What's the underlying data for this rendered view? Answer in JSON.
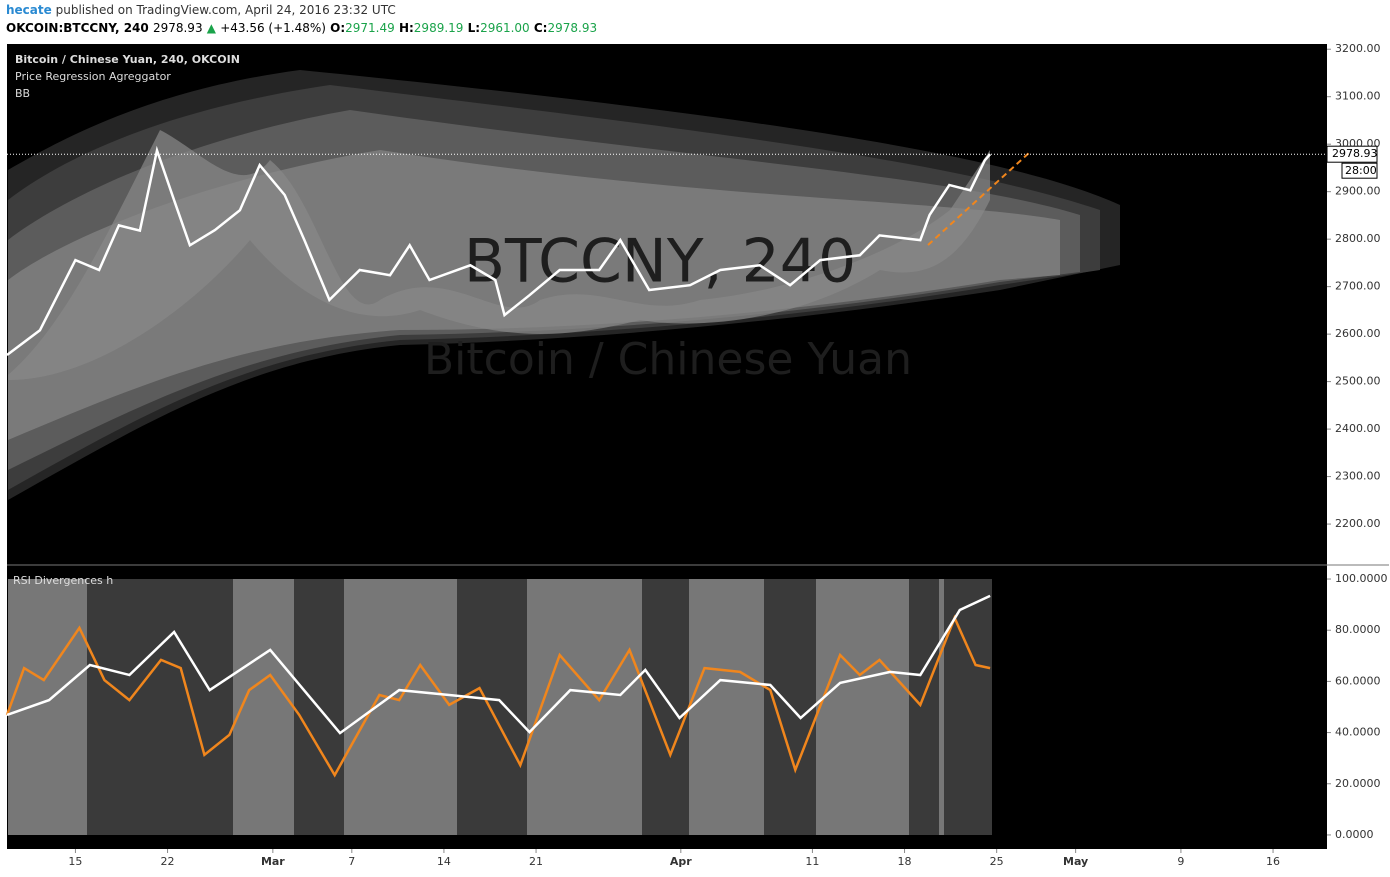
{
  "header": {
    "author": "hecate",
    "published": "published on TradingView.com, April 24, 2016 23:32 UTC",
    "symbol": "OKCOIN:BTCCNY, 240",
    "price": "2978.93",
    "arrow": "▲",
    "change": "+43.56 (+1.48%)",
    "o_label": "O:",
    "open": "2971.49",
    "h_label": "H:",
    "high": "2989.19",
    "l_label": "L:",
    "low": "2961.00",
    "c_label": "C:",
    "close": "2978.93"
  },
  "chart_data": [
    {
      "type": "line",
      "indicators": [
        "Price Regression Agreggator",
        "BB"
      ],
      "watermark": [
        "BTCCNY, 240",
        "Bitcoin / Chinese Yuan"
      ],
      "xlim": [
        -5.2,
        95.1
      ],
      "ylim": [
        2118,
        3211
      ],
      "xticks": [
        {
          "value": 0,
          "label": "15"
        },
        {
          "value": 7,
          "label": "22"
        },
        {
          "value": 15,
          "label": "Mar"
        },
        {
          "value": 21,
          "label": "7"
        },
        {
          "value": 28,
          "label": "14"
        },
        {
          "value": 35,
          "label": "21"
        },
        {
          "value": 46,
          "label": "Apr"
        },
        {
          "value": 56,
          "label": "11"
        },
        {
          "value": 63,
          "label": "18"
        },
        {
          "value": 70,
          "label": "25"
        },
        {
          "value": 76,
          "label": "May"
        },
        {
          "value": 84,
          "label": "9"
        },
        {
          "value": 91,
          "label": "16"
        }
      ],
      "yticks": [
        {
          "value": 2200,
          "label": "2200.00"
        },
        {
          "value": 2300,
          "label": "2300.00"
        },
        {
          "value": 2400,
          "label": "2400.00"
        },
        {
          "value": 2500,
          "label": "2500.00"
        },
        {
          "value": 2600,
          "label": "2600.00"
        },
        {
          "value": 2700,
          "label": "2700.00"
        },
        {
          "value": 2800,
          "label": "2800.00"
        },
        {
          "value": 2900,
          "label": "2900.00"
        },
        {
          "value": 3000,
          "label": "3000.00"
        },
        {
          "value": 3100,
          "label": "3100.00"
        },
        {
          "value": 3200,
          "label": "3200.00"
        }
      ],
      "last_price": {
        "value": 2978.93,
        "label": "2978.93"
      },
      "countdown": "28:00",
      "series": [
        {
          "name": "Bitcoin / Chinese Yuan, 240, OKCOIN",
          "color": "#ffffff",
          "x": [
            -5.2,
            -2.7,
            0,
            1.8,
            3.3,
            4.9,
            6.2,
            7.5,
            8.7,
            10.6,
            12.5,
            14.0,
            15.9,
            17.4,
            19.3,
            21.6,
            23.9,
            25.4,
            26.9,
            30.0,
            31.9,
            32.6,
            34.5,
            36.8,
            39.8,
            41.4,
            43.6,
            46.7,
            49.0,
            52.0,
            54.3,
            56.6,
            59.6,
            61.1,
            64.2,
            64.9,
            66.4,
            68.0,
            69.1,
            69.5
          ],
          "values": [
            2556,
            2608,
            2756,
            2735,
            2829,
            2818,
            2987,
            2882,
            2787,
            2819,
            2861,
            2956,
            2893,
            2798,
            2672,
            2735,
            2724,
            2787,
            2714,
            2745,
            2714,
            2640,
            2682,
            2735,
            2735,
            2798,
            2693,
            2703,
            2735,
            2745,
            2703,
            2756,
            2766,
            2808,
            2798,
            2851,
            2914,
            2903,
            2966,
            2979
          ]
        }
      ]
    },
    {
      "type": "line",
      "title": "RSI Divergences h",
      "ylim": [
        -5.1,
        104.7
      ],
      "yticks": [
        {
          "value": 0,
          "label": "0.0000"
        },
        {
          "value": 20,
          "label": "20.0000"
        },
        {
          "value": 40,
          "label": "40.0000"
        },
        {
          "value": 60,
          "label": "60.0000"
        },
        {
          "value": 80,
          "label": "80.0000"
        },
        {
          "value": 100,
          "label": "100.0000"
        }
      ],
      "series": [
        {
          "color": "#f0861d",
          "x": [
            -5.2,
            -3.9,
            -2.4,
            0.3,
            2.2,
            4.1,
            6.5,
            8.0,
            9.8,
            11.7,
            13.2,
            14.8,
            17.0,
            19.7,
            23.1,
            24.6,
            26.2,
            28.4,
            30.7,
            33.8,
            36.8,
            39.8,
            42.1,
            45.2,
            47.8,
            50.5,
            52.8,
            54.7,
            58.1,
            59.6,
            61.1,
            64.2,
            66.8,
            68.4,
            69.5
          ],
          "values": [
            46.9,
            65.2,
            60.5,
            80.9,
            60.5,
            52.7,
            68.4,
            65.2,
            31.3,
            39.1,
            56.6,
            62.5,
            46.9,
            23.4,
            54.7,
            52.7,
            66.4,
            50.8,
            57.4,
            27.3,
            70.3,
            52.7,
            72.3,
            31.3,
            65.2,
            63.7,
            56.6,
            25.4,
            70.3,
            62.5,
            68.4,
            50.8,
            84.8,
            66.4,
            65.2
          ]
        },
        {
          "color": "#ffffff",
          "x": [
            -5.2,
            -2.0,
            1.1,
            4.1,
            7.5,
            10.2,
            14.8,
            20.1,
            24.6,
            28.4,
            32.2,
            34.5,
            37.6,
            41.4,
            43.3,
            45.9,
            49.0,
            52.8,
            55.1,
            58.1,
            61.9,
            64.2,
            67.2,
            69.5
          ],
          "values": [
            46.9,
            52.7,
            66.4,
            62.5,
            79.3,
            56.6,
            72.3,
            39.8,
            56.6,
            54.7,
            52.7,
            40.2,
            56.6,
            54.7,
            64.5,
            45.7,
            60.5,
            58.6,
            45.7,
            59.4,
            63.7,
            62.5,
            87.9,
            93.4
          ]
        }
      ]
    }
  ]
}
